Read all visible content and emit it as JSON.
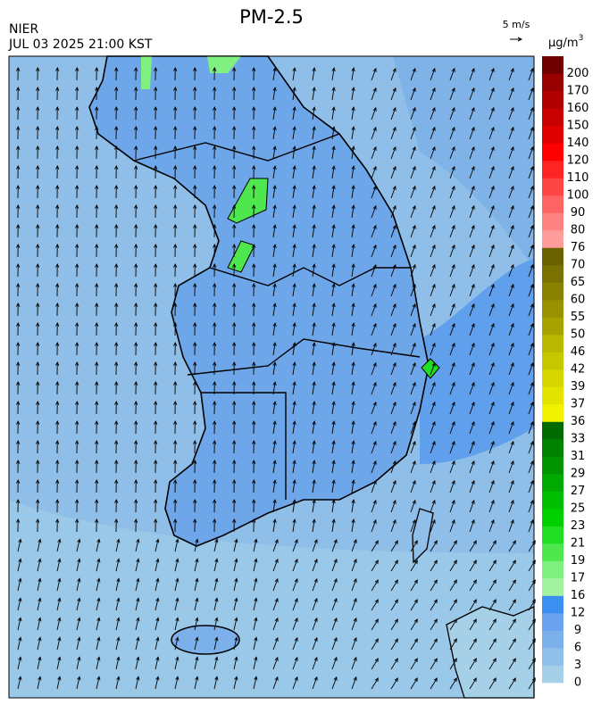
{
  "header": {
    "title": "PM-2.5",
    "agency": "NIER",
    "datetime": "JUL 03 2025 21:00 KST",
    "wind_scale": "5 m/s"
  },
  "legend": {
    "unit": "μg/m",
    "unit_exponent": "3",
    "labels": [
      "0",
      "3",
      "6",
      "9",
      "12",
      "16",
      "17",
      "19",
      "21",
      "23",
      "25",
      "27",
      "29",
      "31",
      "33",
      "36",
      "37",
      "39",
      "42",
      "46",
      "50",
      "55",
      "60",
      "65",
      "70",
      "76",
      "80",
      "90",
      "100",
      "110",
      "120",
      "140",
      "150",
      "160",
      "170",
      "200"
    ],
    "colors": [
      "#a6cfe8",
      "#90c0ea",
      "#7cb0ea",
      "#6aa2ee",
      "#3b8ff0",
      "#a2f2a2",
      "#80f080",
      "#4ee84e",
      "#22de22",
      "#00d000",
      "#00bf00",
      "#00a900",
      "#009500",
      "#008100",
      "#006b00",
      "#f2f200",
      "#e3e300",
      "#d6d600",
      "#c7c700",
      "#b8b800",
      "#a8a200",
      "#999100",
      "#898100",
      "#797100",
      "#6a6100",
      "#ff9c9c",
      "#ff8282",
      "#ff6464",
      "#ff4646",
      "#ff2424",
      "#ff0000",
      "#e00000",
      "#c80000",
      "#b00000",
      "#980000",
      "#700000"
    ]
  }
}
